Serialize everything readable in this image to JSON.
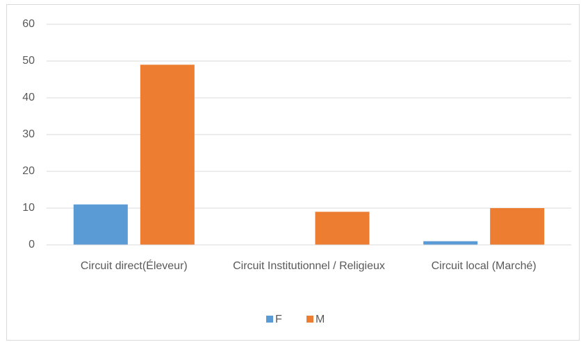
{
  "chart_data": {
    "type": "bar",
    "categories": [
      "Circuit direct(Éleveur)",
      "Circuit Institutionnel / Religieux",
      "Circuit local (Marché)"
    ],
    "series": [
      {
        "name": "F",
        "color": "#5b9bd5",
        "values": [
          11,
          0,
          1
        ]
      },
      {
        "name": "M",
        "color": "#ed7d31",
        "values": [
          49,
          9,
          10
        ]
      }
    ],
    "ylim": [
      0,
      60
    ],
    "yticks": [
      0,
      10,
      20,
      30,
      40,
      50,
      60
    ],
    "grid": true,
    "legend": "bottom"
  }
}
